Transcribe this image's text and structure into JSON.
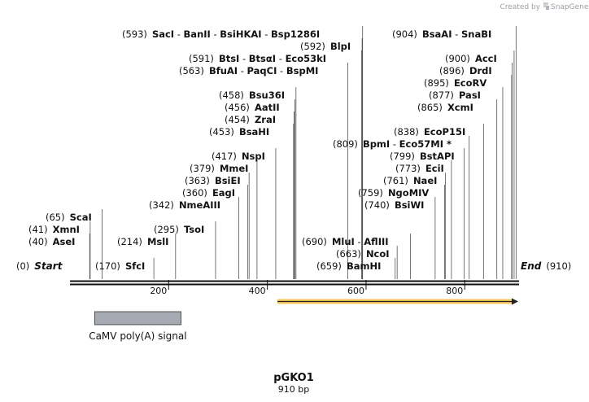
{
  "branding": {
    "prefix": "Created by",
    "name": "SnapGene"
  },
  "plasmid": {
    "name": "pGKO1",
    "length_label": "910 bp",
    "start_label": "Start",
    "end_label": "End",
    "start_num": "(0)",
    "end_num": "(910)"
  },
  "axis": {
    "min": 0,
    "max": 910,
    "ticks": [
      {
        "v": 200,
        "label": "200"
      },
      {
        "v": 400,
        "label": "400"
      },
      {
        "v": 600,
        "label": "600"
      },
      {
        "v": 800,
        "label": "800"
      }
    ]
  },
  "features": [
    {
      "name": "CaMV poly(A) signal",
      "start": 50,
      "end": 225,
      "type": "box",
      "color": "#a6abb3"
    },
    {
      "name": "",
      "start": 420,
      "end": 910,
      "type": "arrow",
      "color": "#f7c85b",
      "direction": "forward"
    }
  ],
  "sites": [
    {
      "pos": 0,
      "row": 20,
      "left": 20,
      "parts": [
        {
          "t": "(0)",
          "k": "num"
        },
        {
          "t": "Start",
          "k": "endlbl"
        }
      ]
    },
    {
      "pos": 40,
      "row": 18,
      "left": 35,
      "parts": [
        {
          "t": "(40)",
          "k": "num"
        },
        {
          "t": "AseI",
          "k": "enz"
        }
      ]
    },
    {
      "pos": 41,
      "row": 17,
      "left": 35,
      "parts": [
        {
          "t": "(41)",
          "k": "num"
        },
        {
          "t": "XmnI",
          "k": "enz"
        }
      ]
    },
    {
      "pos": 65,
      "row": 16,
      "left": 56,
      "parts": [
        {
          "t": "(65)",
          "k": "num"
        },
        {
          "t": "ScaI",
          "k": "enz"
        }
      ]
    },
    {
      "pos": 170,
      "row": 20,
      "left": 117,
      "parts": [
        {
          "t": "(170)",
          "k": "num"
        },
        {
          "t": "SfcI",
          "k": "enz"
        }
      ]
    },
    {
      "pos": 214,
      "row": 18,
      "left": 144,
      "parts": [
        {
          "t": "(214)",
          "k": "num"
        },
        {
          "t": "MslI",
          "k": "enz"
        }
      ]
    },
    {
      "pos": 295,
      "row": 17,
      "left": 189,
      "parts": [
        {
          "t": "(295)",
          "k": "num"
        },
        {
          "t": "TsoI",
          "k": "enz"
        }
      ]
    },
    {
      "pos": 342,
      "row": 15,
      "left": 183,
      "parts": [
        {
          "t": "(342)",
          "k": "num"
        },
        {
          "t": "NmeAIII",
          "k": "enz"
        }
      ]
    },
    {
      "pos": 360,
      "row": 14,
      "left": 224,
      "parts": [
        {
          "t": "(360)",
          "k": "num"
        },
        {
          "t": "EagI",
          "k": "enz"
        }
      ]
    },
    {
      "pos": 363,
      "row": 13,
      "left": 227,
      "parts": [
        {
          "t": "(363)",
          "k": "num"
        },
        {
          "t": "BsiEI",
          "k": "enz"
        }
      ]
    },
    {
      "pos": 379,
      "row": 12,
      "left": 233,
      "parts": [
        {
          "t": "(379)",
          "k": "num"
        },
        {
          "t": "MmeI",
          "k": "enz"
        }
      ]
    },
    {
      "pos": 417,
      "row": 11,
      "left": 260,
      "parts": [
        {
          "t": "(417)",
          "k": "num"
        },
        {
          "t": "NspI",
          "k": "enz"
        }
      ]
    },
    {
      "pos": 453,
      "row": 9,
      "left": 257,
      "parts": [
        {
          "t": "(453)",
          "k": "num"
        },
        {
          "t": "BsaHI",
          "k": "enz"
        }
      ]
    },
    {
      "pos": 454,
      "row": 8,
      "left": 276,
      "parts": [
        {
          "t": "(454)",
          "k": "num"
        },
        {
          "t": "ZraI",
          "k": "enz"
        }
      ]
    },
    {
      "pos": 456,
      "row": 7,
      "left": 276,
      "parts": [
        {
          "t": "(456)",
          "k": "num"
        },
        {
          "t": "AatII",
          "k": "enz"
        }
      ]
    },
    {
      "pos": 458,
      "row": 6,
      "left": 269,
      "parts": [
        {
          "t": "(458)",
          "k": "num"
        },
        {
          "t": "Bsu36I",
          "k": "enz"
        }
      ]
    },
    {
      "pos": 563,
      "row": 4,
      "left": 220,
      "parts": [
        {
          "t": "(563)",
          "k": "num"
        },
        {
          "t": "BfuAI",
          "k": "enz"
        },
        {
          "t": " - ",
          "k": "sep"
        },
        {
          "t": "PaqCI",
          "k": "enz"
        },
        {
          "t": " - ",
          "k": "sep"
        },
        {
          "t": "BspMI",
          "k": "enz"
        }
      ]
    },
    {
      "pos": 591,
      "row": 3,
      "left": 232,
      "parts": [
        {
          "t": "(591)",
          "k": "num"
        },
        {
          "t": "BtsI",
          "k": "enz"
        },
        {
          "t": " - ",
          "k": "sep"
        },
        {
          "t": "BtsαI",
          "k": "enz"
        },
        {
          "t": " - ",
          "k": "sep"
        },
        {
          "t": "Eco53kI",
          "k": "enz"
        }
      ]
    },
    {
      "pos": 592,
      "row": 2,
      "left": 369,
      "parts": [
        {
          "t": "(592)",
          "k": "num"
        },
        {
          "t": "BlpI",
          "k": "enz"
        }
      ]
    },
    {
      "pos": 593,
      "row": 1,
      "left": 150,
      "parts": [
        {
          "t": "(593)",
          "k": "num"
        },
        {
          "t": "SacI",
          "k": "enz"
        },
        {
          "t": " - ",
          "k": "sep"
        },
        {
          "t": "BanII",
          "k": "enz"
        },
        {
          "t": " - ",
          "k": "sep"
        },
        {
          "t": "BsiHKAI",
          "k": "enz"
        },
        {
          "t": " - ",
          "k": "sep"
        },
        {
          "t": "Bsp1286I",
          "k": "enz"
        }
      ]
    },
    {
      "pos": 659,
      "row": 20,
      "left": 389,
      "parts": [
        {
          "t": "(659)",
          "k": "num"
        },
        {
          "t": "BamHI",
          "k": "enz"
        }
      ]
    },
    {
      "pos": 663,
      "row": 19,
      "left": 413,
      "parts": [
        {
          "t": "(663)",
          "k": "num"
        },
        {
          "t": "NcoI",
          "k": "enz"
        }
      ]
    },
    {
      "pos": 690,
      "row": 18,
      "left": 371,
      "parts": [
        {
          "t": "(690)",
          "k": "num"
        },
        {
          "t": "MluI",
          "k": "enz"
        },
        {
          "t": " - ",
          "k": "sep"
        },
        {
          "t": "AflIII",
          "k": "enz"
        }
      ]
    },
    {
      "pos": 740,
      "row": 15,
      "left": 448,
      "parts": [
        {
          "t": "(740)",
          "k": "num"
        },
        {
          "t": "BsiWI",
          "k": "enz"
        }
      ]
    },
    {
      "pos": 759,
      "row": 14,
      "left": 440,
      "parts": [
        {
          "t": "(759)",
          "k": "num"
        },
        {
          "t": "NgoMIV",
          "k": "enz"
        }
      ]
    },
    {
      "pos": 761,
      "row": 13,
      "left": 471,
      "parts": [
        {
          "t": "(761)",
          "k": "num"
        },
        {
          "t": "NaeI",
          "k": "enz"
        }
      ]
    },
    {
      "pos": 773,
      "row": 12,
      "left": 486,
      "parts": [
        {
          "t": "(773)",
          "k": "num"
        },
        {
          "t": "EciI",
          "k": "enz"
        }
      ]
    },
    {
      "pos": 799,
      "row": 11,
      "left": 479,
      "parts": [
        {
          "t": "(799)",
          "k": "num"
        },
        {
          "t": "BstAPI",
          "k": "enz"
        }
      ]
    },
    {
      "pos": 809,
      "row": 10,
      "left": 409,
      "parts": [
        {
          "t": "(809)",
          "k": "num"
        },
        {
          "t": "BpmI",
          "k": "enz"
        },
        {
          "t": " - ",
          "k": "sep"
        },
        {
          "t": "Eco57MI *",
          "k": "enz"
        }
      ]
    },
    {
      "pos": 838,
      "row": 9,
      "left": 484,
      "parts": [
        {
          "t": "(838)",
          "k": "num"
        },
        {
          "t": "EcoP15I",
          "k": "enz"
        }
      ]
    },
    {
      "pos": 865,
      "row": 7,
      "left": 513,
      "parts": [
        {
          "t": "(865)",
          "k": "num"
        },
        {
          "t": "XcmI",
          "k": "enz"
        }
      ]
    },
    {
      "pos": 877,
      "row": 6,
      "left": 527,
      "parts": [
        {
          "t": "(877)",
          "k": "num"
        },
        {
          "t": "PasI",
          "k": "enz"
        }
      ]
    },
    {
      "pos": 895,
      "row": 5,
      "left": 521,
      "parts": [
        {
          "t": "(895)",
          "k": "num"
        },
        {
          "t": "EcoRV",
          "k": "enz"
        }
      ]
    },
    {
      "pos": 896,
      "row": 4,
      "left": 540,
      "parts": [
        {
          "t": "(896)",
          "k": "num"
        },
        {
          "t": "DrdI",
          "k": "enz"
        }
      ]
    },
    {
      "pos": 900,
      "row": 3,
      "left": 547,
      "parts": [
        {
          "t": "(900)",
          "k": "num"
        },
        {
          "t": "AccI",
          "k": "enz"
        }
      ]
    },
    {
      "pos": 904,
      "row": 1,
      "left": 482,
      "parts": [
        {
          "t": "(904)",
          "k": "num"
        },
        {
          "t": "BsaAI",
          "k": "enz"
        },
        {
          "t": " - ",
          "k": "sep"
        },
        {
          "t": "SnaBI",
          "k": "enz"
        }
      ]
    },
    {
      "pos": 910,
      "row": 20,
      "left": 640,
      "parts": [
        {
          "t": "End",
          "k": "endlbl"
        },
        {
          "t": "(910)",
          "k": "num"
        }
      ]
    }
  ]
}
